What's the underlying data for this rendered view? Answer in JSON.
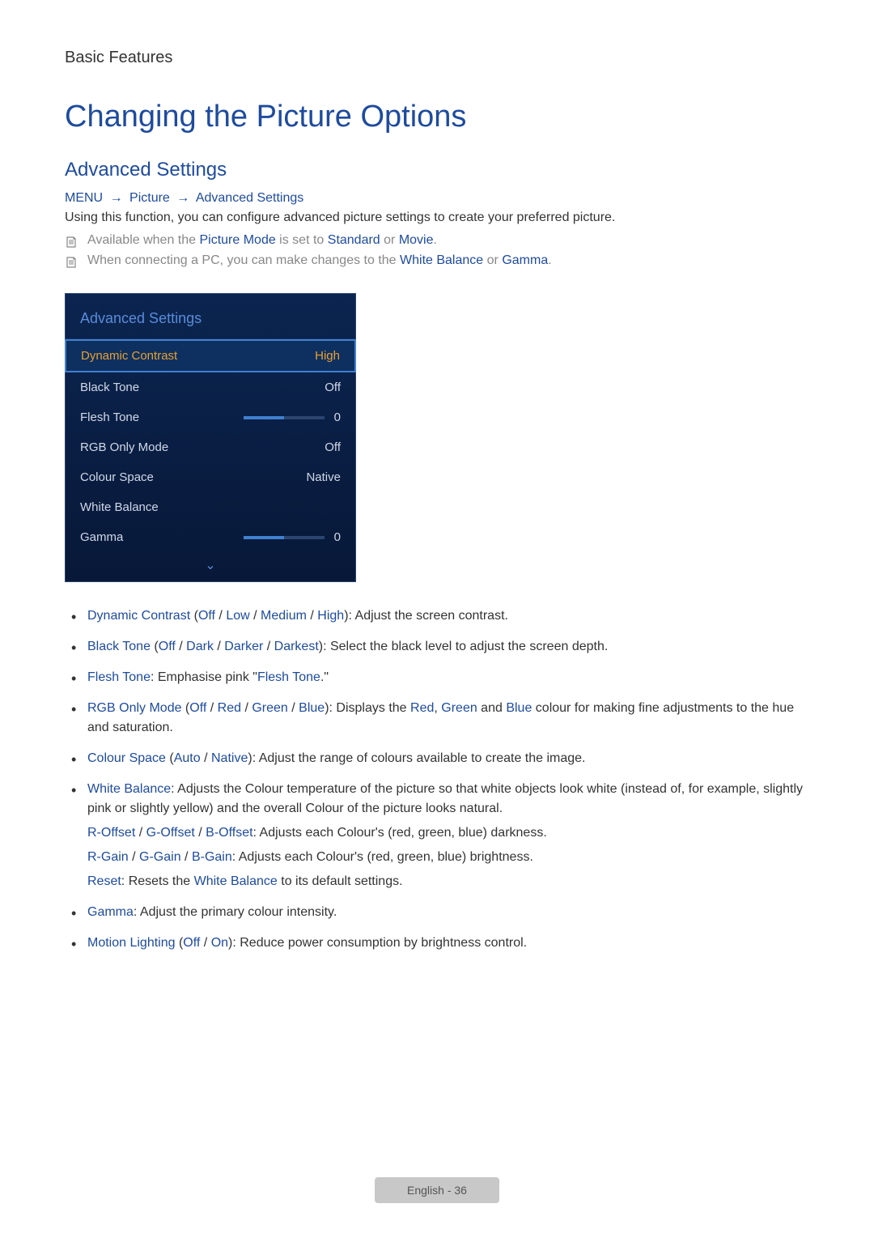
{
  "breadcrumb": "Basic Features",
  "page_title": "Changing the Picture Options",
  "section_title": "Advanced Settings",
  "nav_path": {
    "menu": "MENU",
    "picture": "Picture",
    "advanced": "Advanced Settings",
    "arrow": "→"
  },
  "intro_text": "Using this function, you can configure advanced picture settings to create your preferred picture.",
  "notes": [
    {
      "prefix": "Available when the ",
      "t1": "Picture Mode",
      "mid1": " is set to ",
      "t2": "Standard",
      "mid2": " or ",
      "t3": "Movie",
      "suffix": "."
    },
    {
      "prefix": "When connecting a PC, you can make changes to the ",
      "t1": "White Balance",
      "mid1": " or ",
      "t2": "Gamma",
      "suffix": "."
    }
  ],
  "panel": {
    "title": "Advanced Settings",
    "rows": [
      {
        "label": "Dynamic Contrast",
        "value": "High",
        "type": "value",
        "highlighted": true
      },
      {
        "label": "Black Tone",
        "value": "Off",
        "type": "value"
      },
      {
        "label": "Flesh Tone",
        "value": "0",
        "type": "slider",
        "fill_pct": 50
      },
      {
        "label": "RGB Only Mode",
        "value": "Off",
        "type": "value"
      },
      {
        "label": "Colour Space",
        "value": "Native",
        "type": "value"
      },
      {
        "label": "White Balance",
        "value": "",
        "type": "value"
      },
      {
        "label": "Gamma",
        "value": "0",
        "type": "slider",
        "fill_pct": 50
      }
    ],
    "chevron": "⌄"
  },
  "bullets": {
    "b0": {
      "t1": "Dynamic Contrast",
      "p1": " (",
      "t2": "Off",
      "s1": " / ",
      "t3": "Low",
      "s2": " / ",
      "t4": "Medium",
      "s3": " / ",
      "t5": "High",
      "suffix": "): Adjust the screen contrast."
    },
    "b1": {
      "t1": "Black Tone",
      "p1": " (",
      "t2": "Off",
      "s1": " / ",
      "t3": "Dark",
      "s2": " / ",
      "t4": "Darker",
      "s3": " / ",
      "t5": "Darkest",
      "suffix": "): Select the black level to adjust the screen depth."
    },
    "b2": {
      "t1": "Flesh Tone",
      "mid": ": Emphasise pink \"",
      "t2": "Flesh Tone",
      "suffix": ".\""
    },
    "b3": {
      "t1": "RGB Only Mode",
      "p1": " (",
      "t2": "Off",
      "s1": " / ",
      "t3": "Red",
      "s2": " / ",
      "t4": "Green",
      "s3": " / ",
      "t5": "Blue",
      "mid": "): Displays the ",
      "t6": "Red",
      "c1": ", ",
      "t7": "Green",
      "c2": " and ",
      "t8": "Blue",
      "suffix": " colour for making fine adjustments to the hue and saturation."
    },
    "b4": {
      "t1": "Colour Space",
      "p1": " (",
      "t2": "Auto",
      "s1": " / ",
      "t3": "Native",
      "suffix": "): Adjust the range of colours available to create the image."
    },
    "b5": {
      "t1": "White Balance",
      "line1": ": Adjusts the Colour temperature of the picture so that white objects look white (instead of, for example, slightly pink or slightly yellow) and the overall Colour of the picture looks natural.",
      "l2_t1": "R-Offset",
      "l2_s1": " / ",
      "l2_t2": "G-Offset",
      "l2_s2": " / ",
      "l2_t3": "B-Offset",
      "l2_suffix": ": Adjusts each Colour's (red, green, blue) darkness.",
      "l3_t1": "R-Gain",
      "l3_s1": " / ",
      "l3_t2": "G-Gain",
      "l3_s2": " / ",
      "l3_t3": "B-Gain",
      "l3_suffix": ": Adjusts each Colour's (red, green, blue) brightness.",
      "l4_t1": "Reset",
      "l4_mid": ": Resets the ",
      "l4_t2": "White Balance",
      "l4_suffix": " to its default settings."
    },
    "b6": {
      "t1": "Gamma",
      "suffix": ": Adjust the primary colour intensity."
    },
    "b7": {
      "t1": "Motion Lighting",
      "p1": " (",
      "t2": "Off",
      "s1": " / ",
      "t3": "On",
      "suffix": "): Reduce power consumption by brightness control."
    }
  },
  "footer": {
    "lang": "English",
    "sep": " - ",
    "page": "36"
  }
}
